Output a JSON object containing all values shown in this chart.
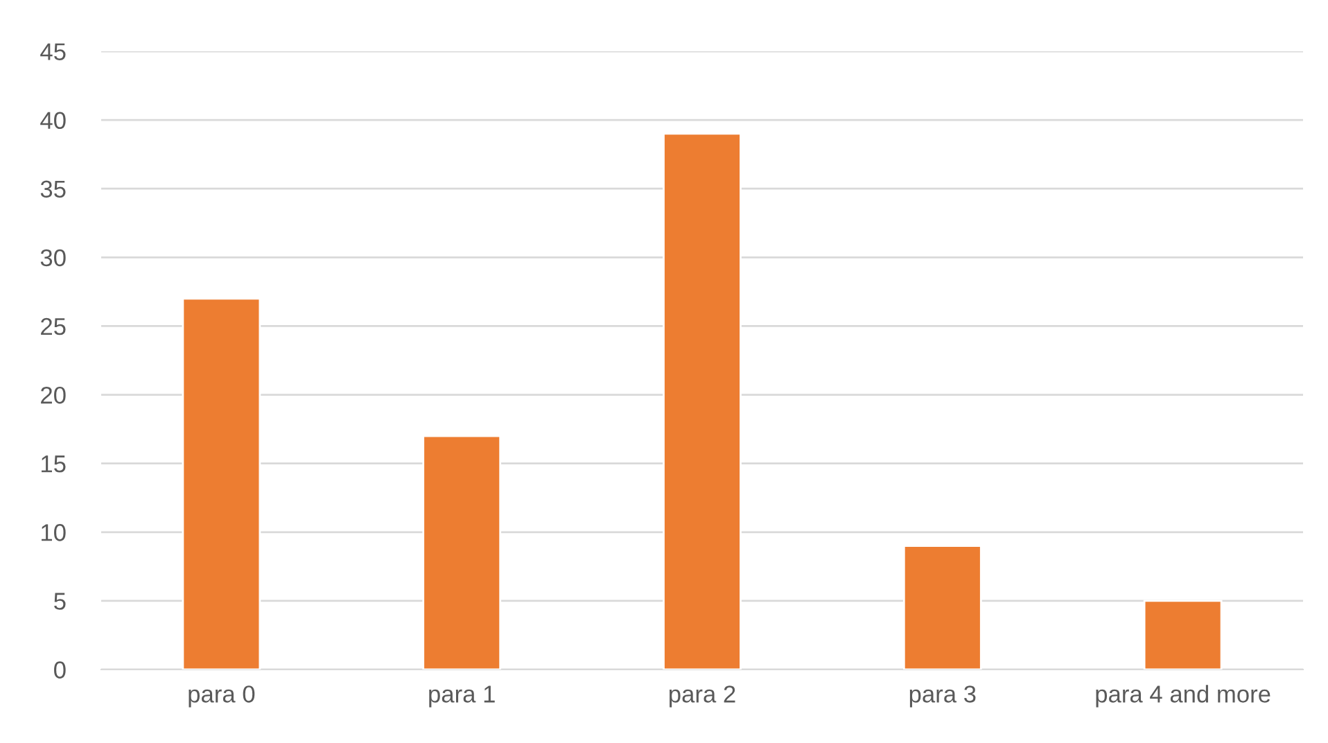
{
  "chart_data": {
    "type": "bar",
    "categories": [
      "para 0",
      "para 1",
      "para 2",
      "para 3",
      "para 4 and more"
    ],
    "values": [
      27,
      17,
      39,
      9,
      5
    ],
    "color": "#ed7d31",
    "ylim": [
      0,
      45
    ],
    "yticks": [
      0,
      5,
      10,
      15,
      20,
      25,
      30,
      35,
      40,
      45
    ],
    "grid": "y"
  }
}
